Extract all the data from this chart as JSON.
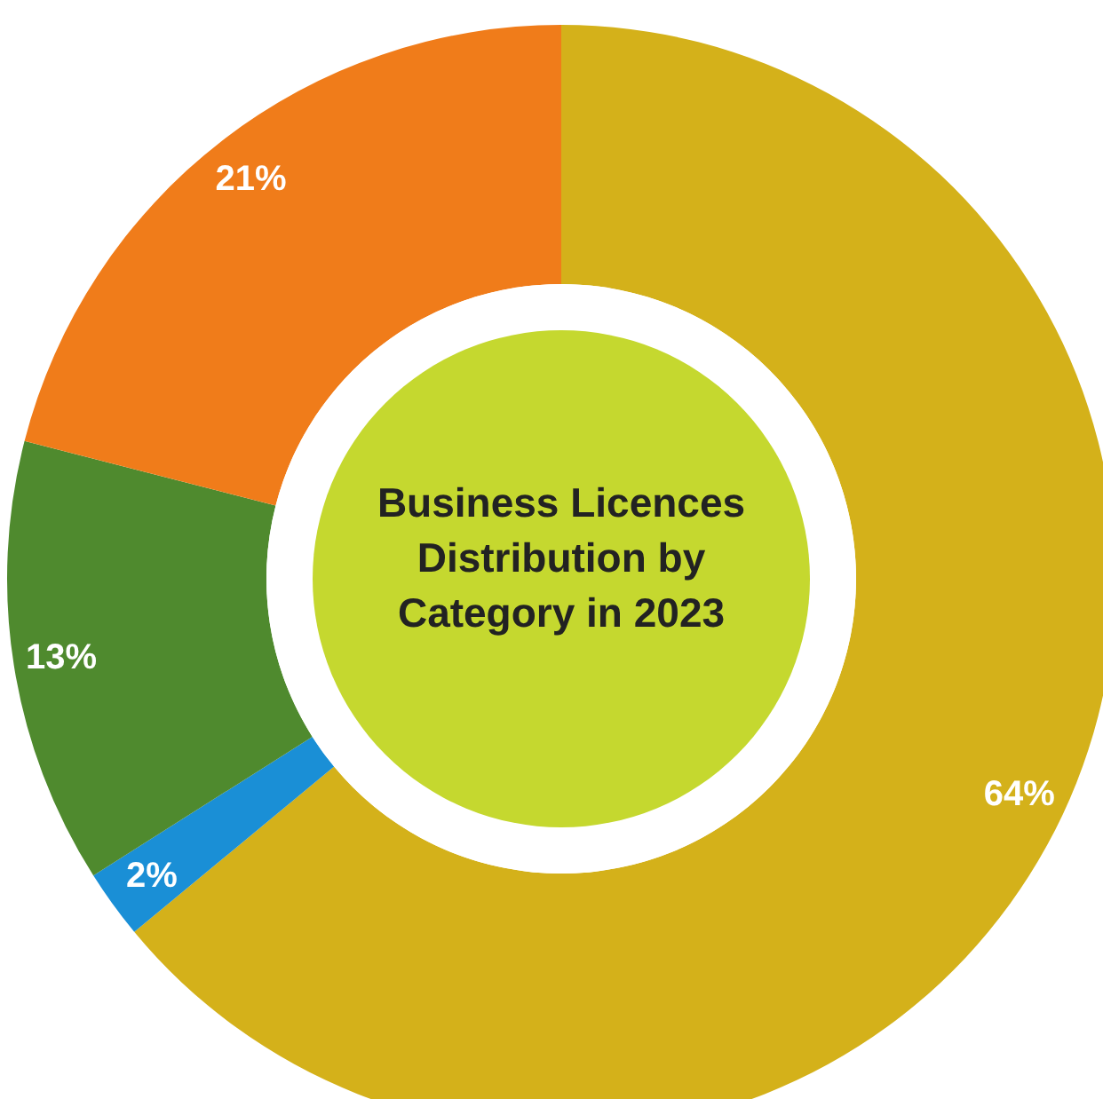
{
  "chart_data": {
    "type": "donut",
    "title": "Business Licences Distribution by Category in 2023",
    "categories": [
      null,
      null,
      null,
      null
    ],
    "values": [
      64,
      2,
      13,
      21
    ],
    "colors": [
      "#d4b11a",
      "#1a8fd6",
      "#4f8a2e",
      "#f07c1a"
    ],
    "value_labels": [
      "64%",
      "2%",
      "13%",
      "21%"
    ]
  }
}
